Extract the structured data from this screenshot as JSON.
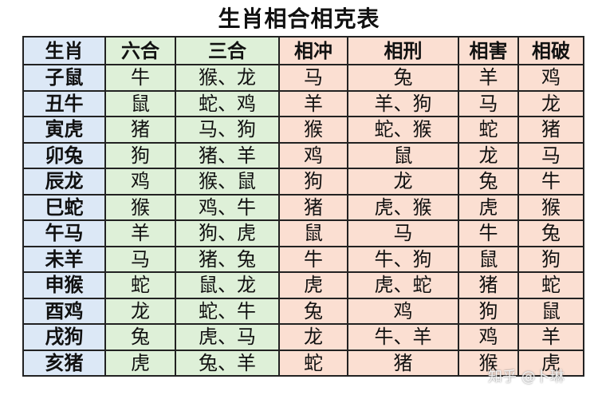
{
  "title": "生肖相合相克表",
  "headers": [
    "生肖",
    "六合",
    "三合",
    "相冲",
    "相刑",
    "相害",
    "相破"
  ],
  "rows": [
    [
      "子鼠",
      "牛",
      "猴、龙",
      "马",
      "兔",
      "羊",
      "鸡"
    ],
    [
      "丑牛",
      "鼠",
      "蛇、鸡",
      "羊",
      "羊、狗",
      "马",
      "龙"
    ],
    [
      "寅虎",
      "猪",
      "马、狗",
      "猴",
      "蛇、猴",
      "蛇",
      "猪"
    ],
    [
      "卯兔",
      "狗",
      "猪、羊",
      "鸡",
      "鼠",
      "龙",
      "马"
    ],
    [
      "辰龙",
      "鸡",
      "猴、鼠",
      "狗",
      "龙",
      "兔",
      "牛"
    ],
    [
      "巳蛇",
      "猴",
      "鸡、牛",
      "猪",
      "虎、猴",
      "虎",
      "猴"
    ],
    [
      "午马",
      "羊",
      "狗、虎",
      "鼠",
      "马",
      "牛",
      "兔"
    ],
    [
      "未羊",
      "马",
      "猪、兔",
      "牛",
      "牛、狗",
      "鼠",
      "狗"
    ],
    [
      "申猴",
      "蛇",
      "鼠、龙",
      "虎",
      "虎、蛇",
      "猪",
      "蛇"
    ],
    [
      "酉鸡",
      "龙",
      "蛇、牛",
      "兔",
      "鸡",
      "狗",
      "鼠"
    ],
    [
      "戌狗",
      "兔",
      "虎、马",
      "龙",
      "牛、羊",
      "鸡",
      "羊"
    ],
    [
      "亥猪",
      "虎",
      "兔、羊",
      "蛇",
      "猪",
      "猴",
      "虎"
    ]
  ],
  "colors": {
    "zodiac_column": "#dce8f6",
    "harmony_columns": "#def0d8",
    "conflict_columns": "#fbdfd2"
  },
  "watermark": "知乎 @卜琳"
}
